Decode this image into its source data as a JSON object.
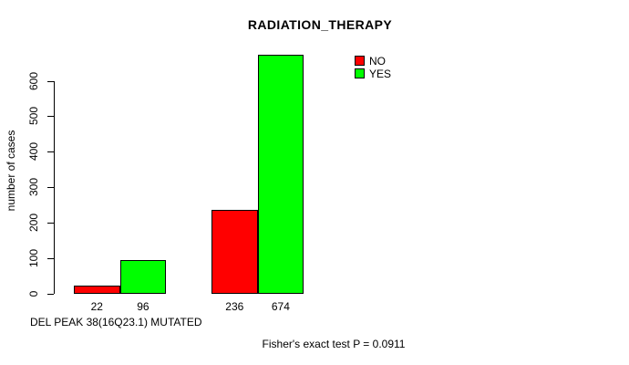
{
  "chart_data": {
    "type": "bar",
    "title": "RADIATION_THERAPY",
    "ylabel": "number of cases",
    "xlabel": "DEL PEAK 38(16Q23.1) MUTATED",
    "yticks": [
      0,
      100,
      200,
      300,
      400,
      500,
      600
    ],
    "ylim": [
      0,
      680
    ],
    "grid": false,
    "legend_position": "top-right",
    "series": [
      {
        "name": "NO",
        "color": "#ff0000",
        "values": [
          22,
          236
        ]
      },
      {
        "name": "YES",
        "color": "#00ff00",
        "values": [
          96,
          674
        ]
      }
    ],
    "bar_value_labels": [
      22,
      96,
      236,
      674
    ],
    "annotation": "Fisher's exact test P = 0.0911"
  },
  "legend": {
    "items": [
      {
        "label": "NO",
        "color": "#ff0000"
      },
      {
        "label": "YES",
        "color": "#00ff00"
      }
    ]
  }
}
